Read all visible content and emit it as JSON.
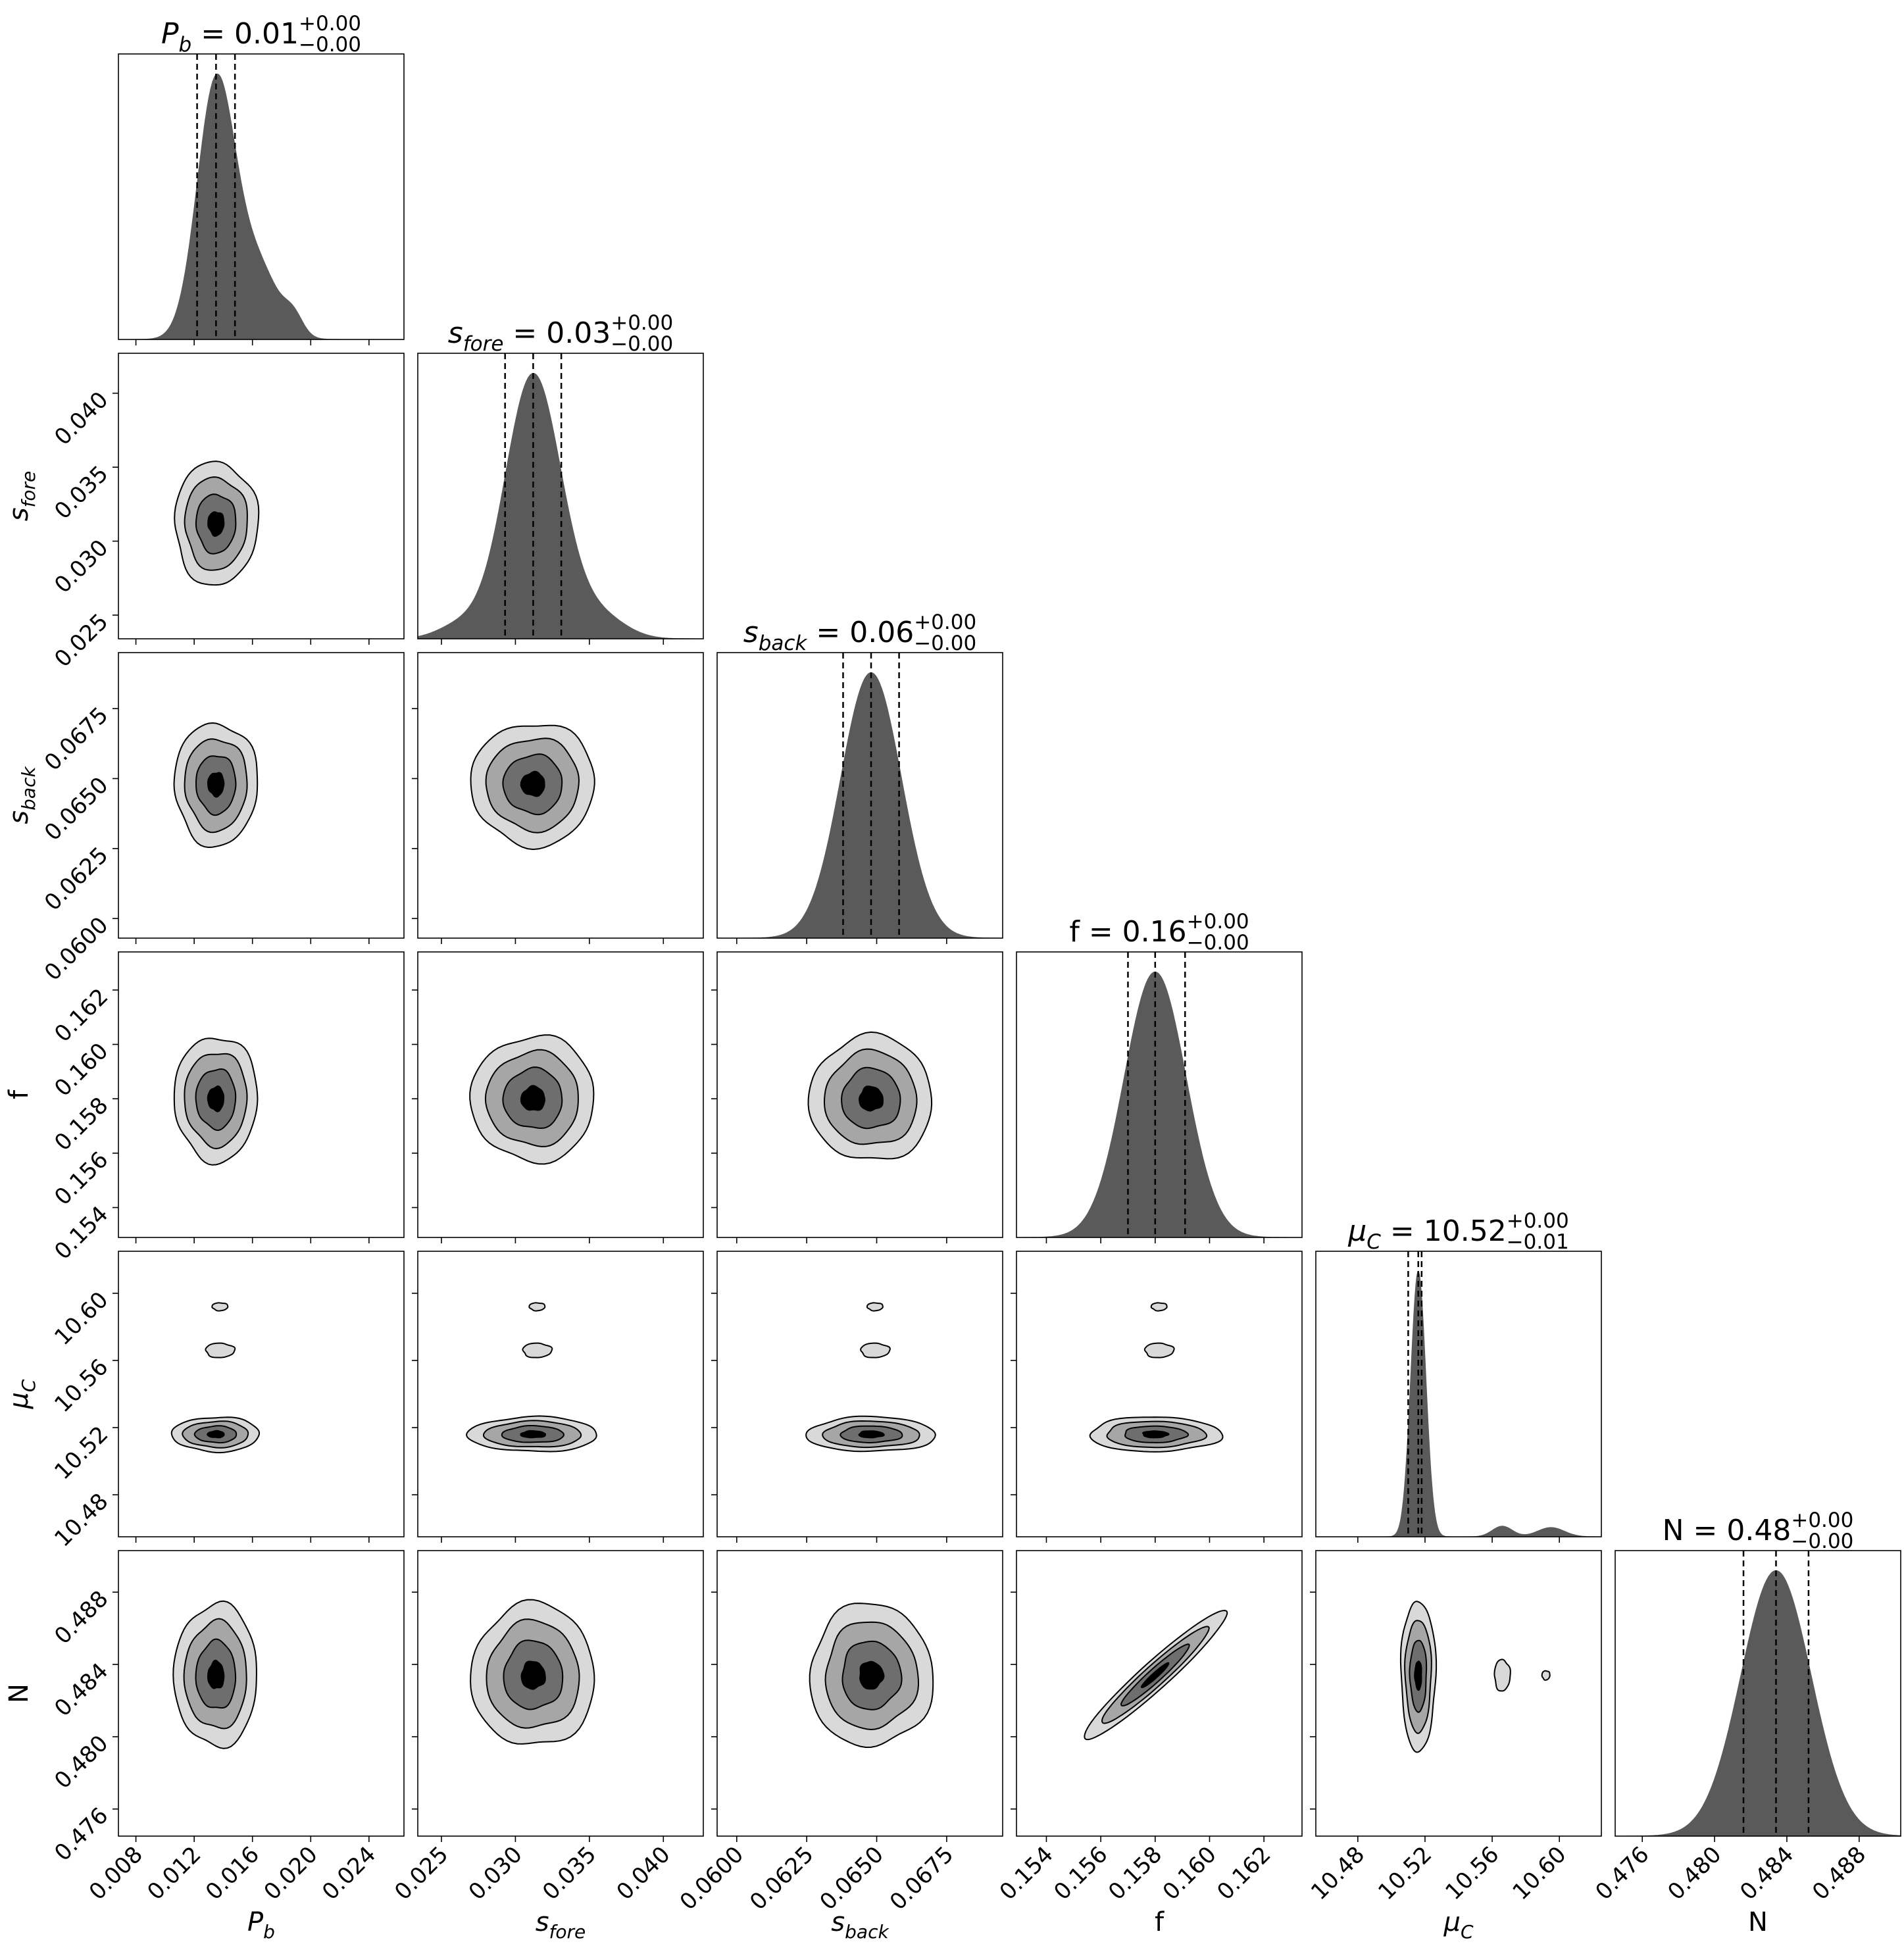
{
  "chart_data": {
    "type": "corner",
    "parameters": [
      {
        "key": "Pb",
        "label_base": "P",
        "label_sub": "b",
        "label_italic": true,
        "title_value": "0.01",
        "title_plus": "+0.00",
        "title_minus": "−0.00",
        "median": 0.0135,
        "q16": 0.0122,
        "q84": 0.0148,
        "lim": [
          0.0068,
          0.0264
        ],
        "ticks": [
          "0.008",
          "0.012",
          "0.016",
          "0.020",
          "0.024"
        ]
      },
      {
        "key": "sfore",
        "label_base": "s",
        "label_sub": "fore",
        "label_italic": true,
        "title_value": "0.03",
        "title_plus": "+0.00",
        "title_minus": "−0.00",
        "median": 0.0312,
        "q16": 0.0293,
        "q84": 0.0331,
        "lim": [
          0.0234,
          0.0427
        ],
        "ticks": [
          "0.025",
          "0.030",
          "0.035",
          "0.040"
        ]
      },
      {
        "key": "sback",
        "label_base": "s",
        "label_sub": "back",
        "label_italic": true,
        "title_value": "0.06",
        "title_plus": "+0.00",
        "title_minus": "−0.00",
        "median": 0.0648,
        "q16": 0.0638,
        "q84": 0.0658,
        "lim": [
          0.0593,
          0.0695
        ],
        "ticks": [
          "0.0600",
          "0.0625",
          "0.0650",
          "0.0675"
        ]
      },
      {
        "key": "f",
        "label_base": "f",
        "label_sub": "",
        "label_italic": false,
        "title_value": "0.16",
        "title_plus": "+0.00",
        "title_minus": "−0.00",
        "median": 0.158,
        "q16": 0.157,
        "q84": 0.1591,
        "lim": [
          0.1529,
          0.1634
        ],
        "ticks": [
          "0.154",
          "0.156",
          "0.158",
          "0.160",
          "0.162"
        ]
      },
      {
        "key": "muC",
        "label_base": "μ",
        "label_sub": "C",
        "label_italic": true,
        "title_value": "10.52",
        "title_plus": "+0.00",
        "title_minus": "−0.01",
        "median": 10.516,
        "q16": 10.51,
        "q84": 10.518,
        "lim": [
          10.455,
          10.625
        ],
        "ticks": [
          "10.48",
          "10.52",
          "10.56",
          "10.60"
        ]
      },
      {
        "key": "N",
        "label_base": "N",
        "label_sub": "",
        "label_italic": false,
        "title_value": "0.48",
        "title_plus": "+0.00",
        "title_minus": "−0.00",
        "median": 0.4834,
        "q16": 0.4816,
        "q84": 0.4852,
        "lim": [
          0.4745,
          0.4903
        ],
        "ticks": [
          "0.476",
          "0.480",
          "0.484",
          "0.488"
        ]
      }
    ],
    "contour_fills": [
      "#d9d9d9",
      "#a6a6a6",
      "#6e6e6e",
      "#000000"
    ],
    "hist_fill": "#5a5a5a",
    "grid": false,
    "legend": "none"
  }
}
